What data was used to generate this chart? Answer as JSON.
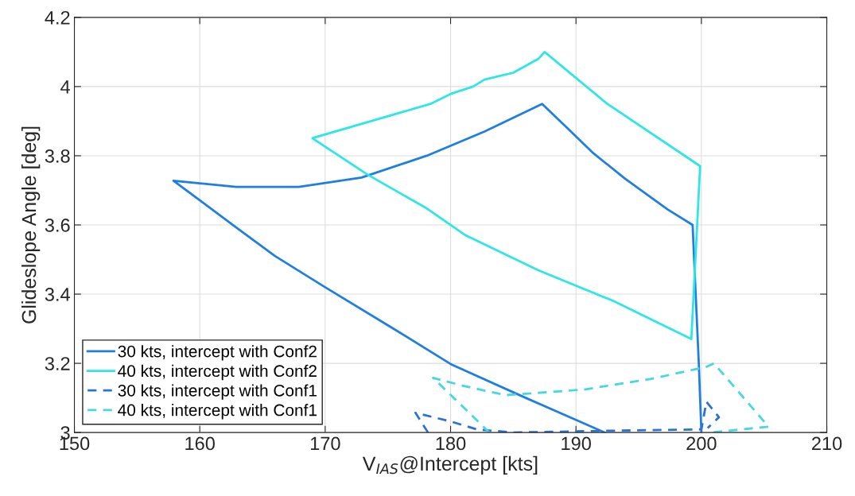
{
  "chart_data": {
    "type": "line",
    "xlabel": "V$_{IAS}$@Intercept [kts]",
    "ylabel": "Glideslope Angle [deg]",
    "xlim": [
      150,
      210
    ],
    "ylim": [
      3,
      4.2
    ],
    "xticks": [
      150,
      160,
      170,
      180,
      190,
      200,
      210
    ],
    "yticks": [
      3,
      3.2,
      3.4,
      3.6,
      3.8,
      4,
      4.2
    ],
    "grid": true,
    "legend": "bottom left",
    "series": [
      {
        "name": "30 kts, intercept with Conf2",
        "color": "#1f7fe0",
        "line_style": "solid",
        "x": [
          192.3,
          186,
          180.1,
          175,
          170,
          166,
          162.9,
          157.9,
          162.9,
          167.9,
          172.9,
          178.1,
          182.7,
          187.3,
          189.3,
          191.3,
          193.9,
          197.3,
          199.3,
          199.8,
          200
        ],
        "values": [
          3.0,
          3.1,
          3.196,
          3.31,
          3.42,
          3.51,
          3.593,
          3.728,
          3.71,
          3.71,
          3.737,
          3.8,
          3.87,
          3.95,
          3.88,
          3.81,
          3.734,
          3.645,
          3.6,
          3.195,
          3.0
        ]
      },
      {
        "name": "40 kts, intercept with Conf2",
        "color": "#2ee6e6",
        "line_style": "solid",
        "x": [
          169.0,
          173.4,
          178,
          181.2,
          187.0,
          193,
          199.2,
          199.9,
          192.5,
          187.5,
          187.0,
          185.0,
          182.7,
          181.8,
          180.1,
          178.4,
          169.1
        ],
        "values": [
          3.85,
          3.745,
          3.65,
          3.57,
          3.469,
          3.38,
          3.27,
          3.77,
          3.95,
          4.1,
          4.08,
          4.04,
          4.02,
          4.0,
          3.98,
          3.95,
          3.852
        ]
      },
      {
        "name": "30 kts, intercept with Conf1",
        "color": "#2a72d4",
        "line_style": "dashed",
        "x": [
          178.2,
          177.2,
          180.0,
          182.1,
          185.0,
          192.3,
          200.0,
          200.4,
          201.4,
          200.5
        ],
        "values": [
          3.0,
          3.057,
          3.032,
          3.009,
          3.0,
          3.005,
          3.009,
          3.089,
          3.044,
          3.013
        ]
      },
      {
        "name": "40 kts, intercept with Conf1",
        "color": "#44d8e0",
        "line_style": "dashed",
        "x": [
          183.1,
          178.6,
          181,
          184.4,
          190.6,
          196,
          200.4,
          201.0,
          205.35,
          200.8
        ],
        "values": [
          3.0,
          3.158,
          3.135,
          3.108,
          3.124,
          3.155,
          3.19,
          3.2,
          3.017,
          3.0
        ]
      }
    ]
  }
}
